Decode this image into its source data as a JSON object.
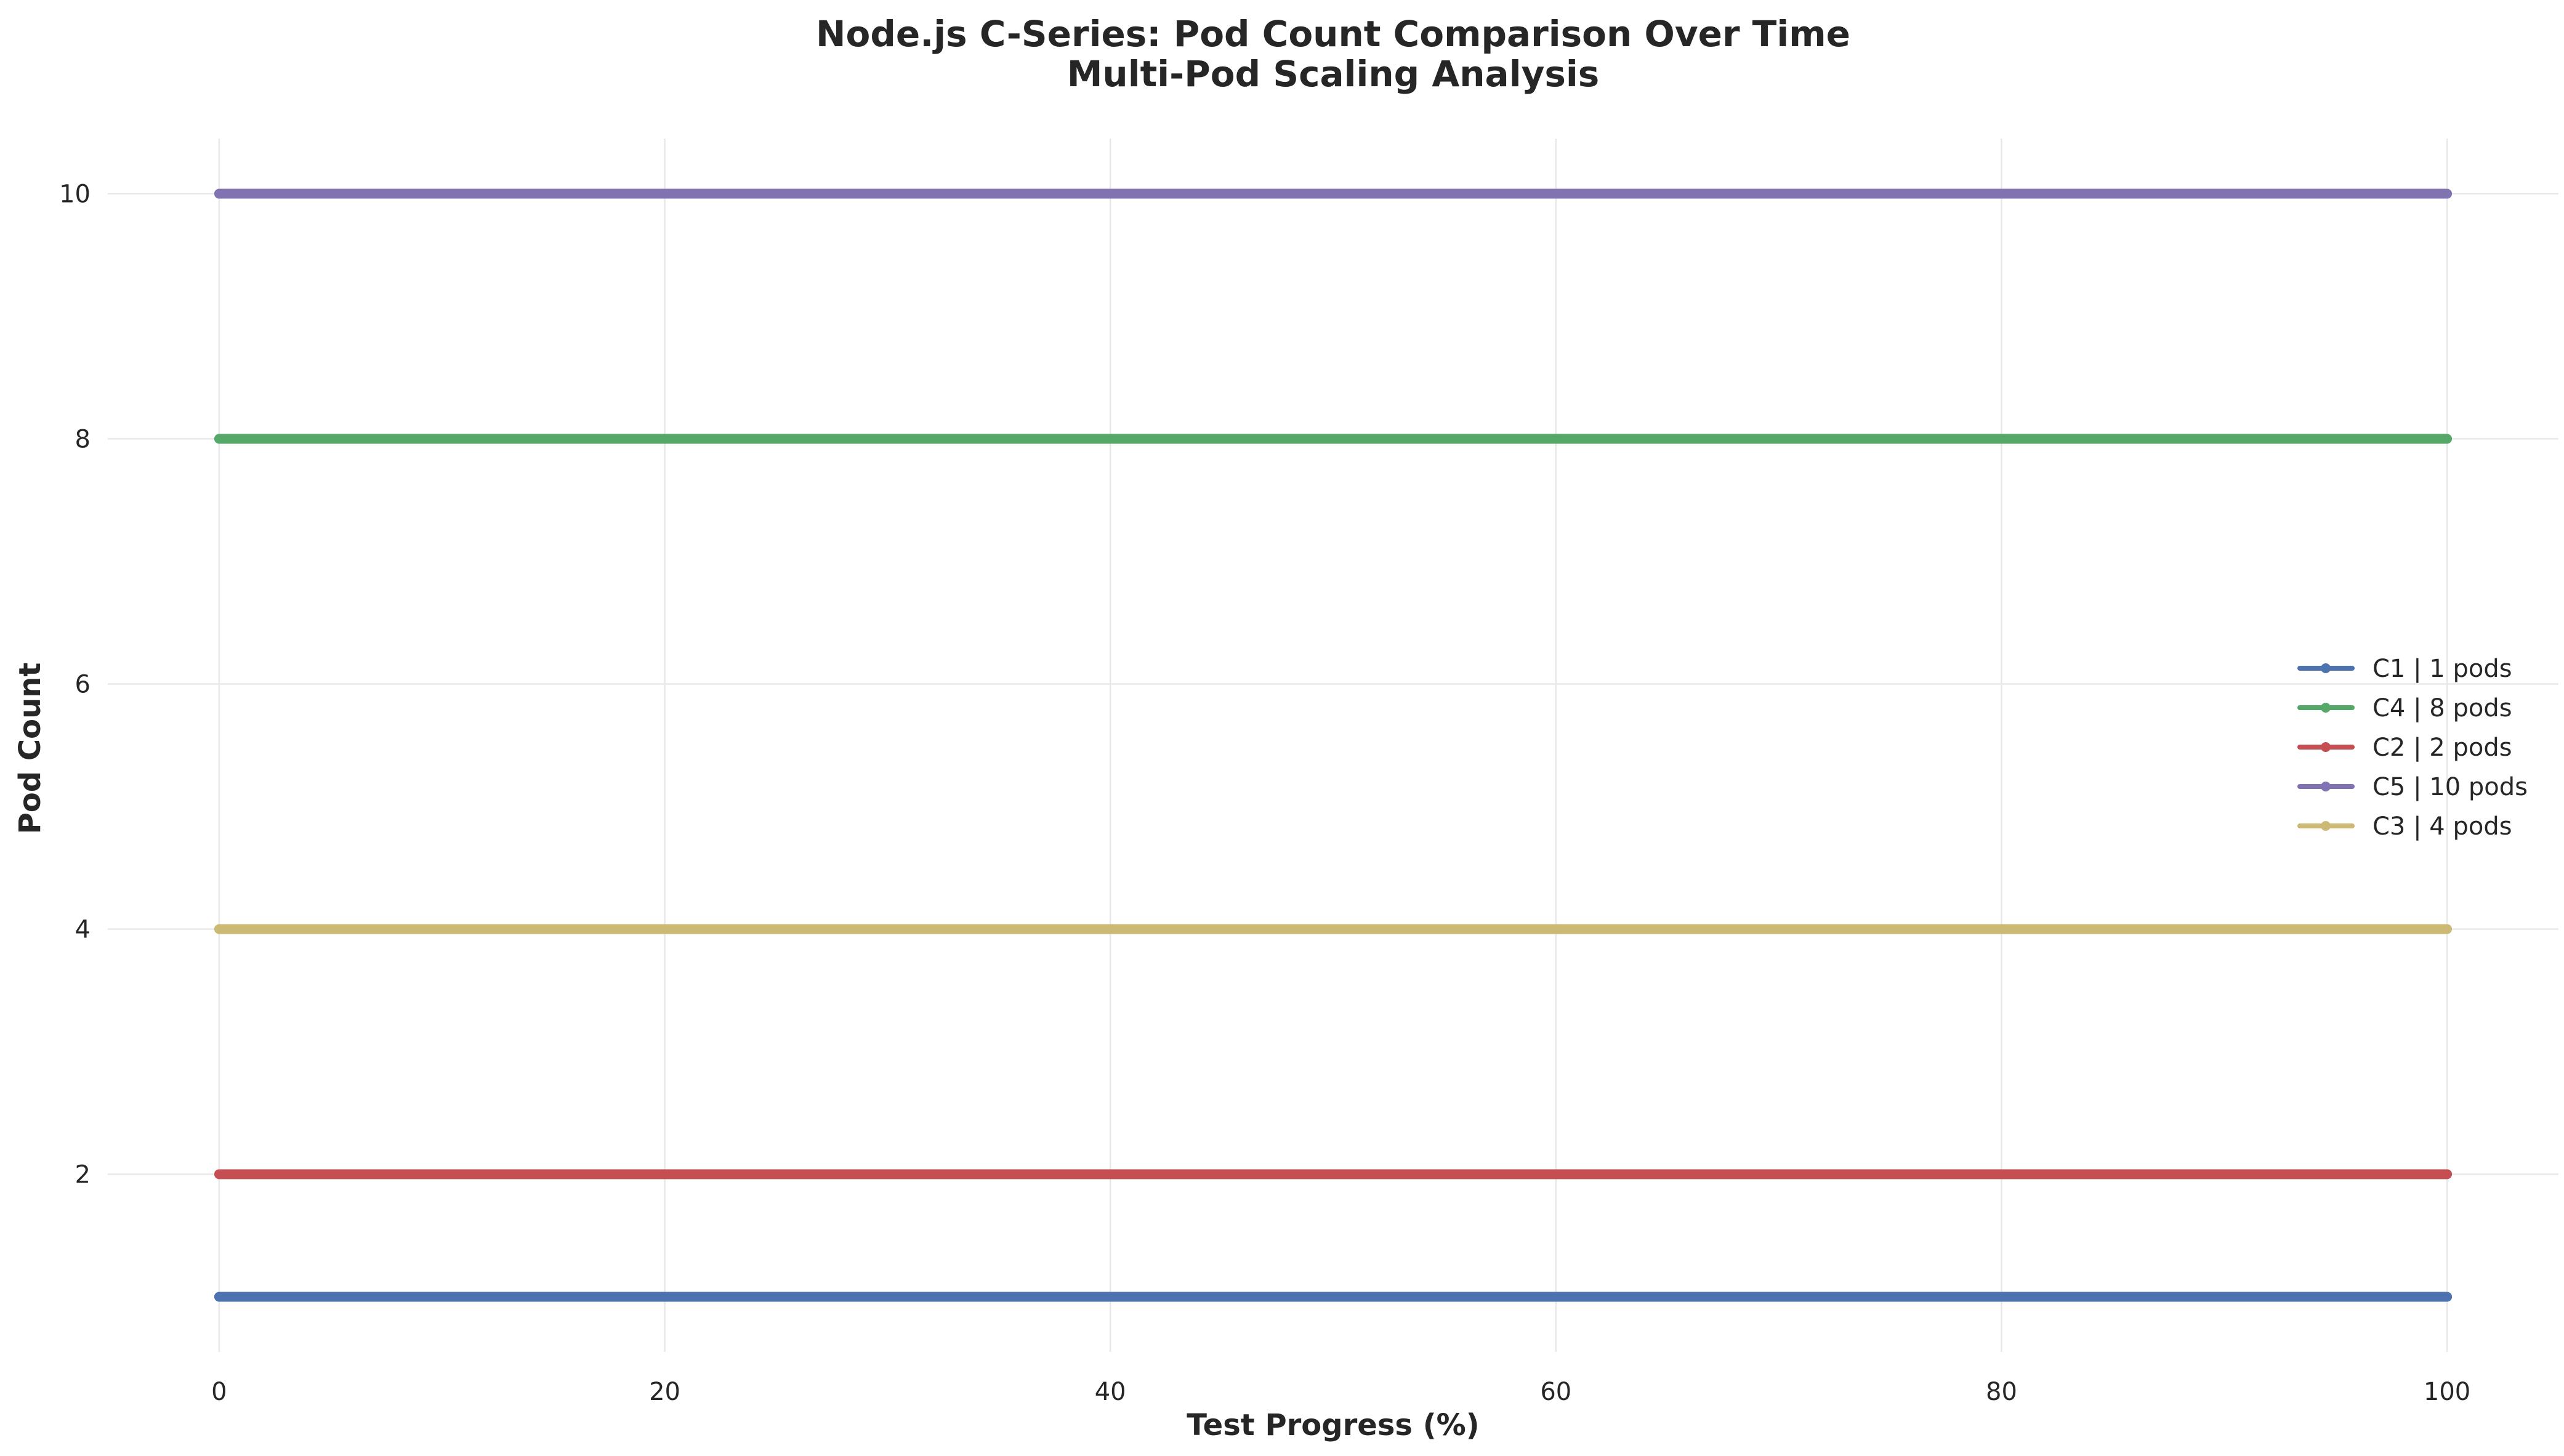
{
  "chart_data": {
    "type": "line",
    "title": [
      "Node.js C-Series: Pod Count Comparison Over Time",
      "Multi-Pod Scaling Analysis"
    ],
    "xlabel": "Test Progress (%)",
    "ylabel": "Pod Count",
    "xlim": [
      -5,
      105
    ],
    "ylim": [
      0.55,
      10.45
    ],
    "xticks": [
      0,
      20,
      40,
      60,
      80,
      100
    ],
    "yticks": [
      2,
      4,
      6,
      8,
      10
    ],
    "grid": true,
    "legend_position": "right",
    "series": [
      {
        "name": "C1 | 1 pods",
        "color": "#4c72b0",
        "x": [
          0,
          100
        ],
        "y": [
          1,
          1
        ]
      },
      {
        "name": "C4 | 8 pods",
        "color": "#55a868",
        "x": [
          0,
          100
        ],
        "y": [
          8,
          8
        ]
      },
      {
        "name": "C2 | 2 pods",
        "color": "#c44e52",
        "x": [
          0,
          100
        ],
        "y": [
          2,
          2
        ]
      },
      {
        "name": "C5 | 10 pods",
        "color": "#8172b2",
        "x": [
          0,
          100
        ],
        "y": [
          10,
          10
        ]
      },
      {
        "name": "C3 | 4 pods",
        "color": "#ccb974",
        "x": [
          0,
          100
        ],
        "y": [
          4,
          4
        ]
      }
    ]
  }
}
